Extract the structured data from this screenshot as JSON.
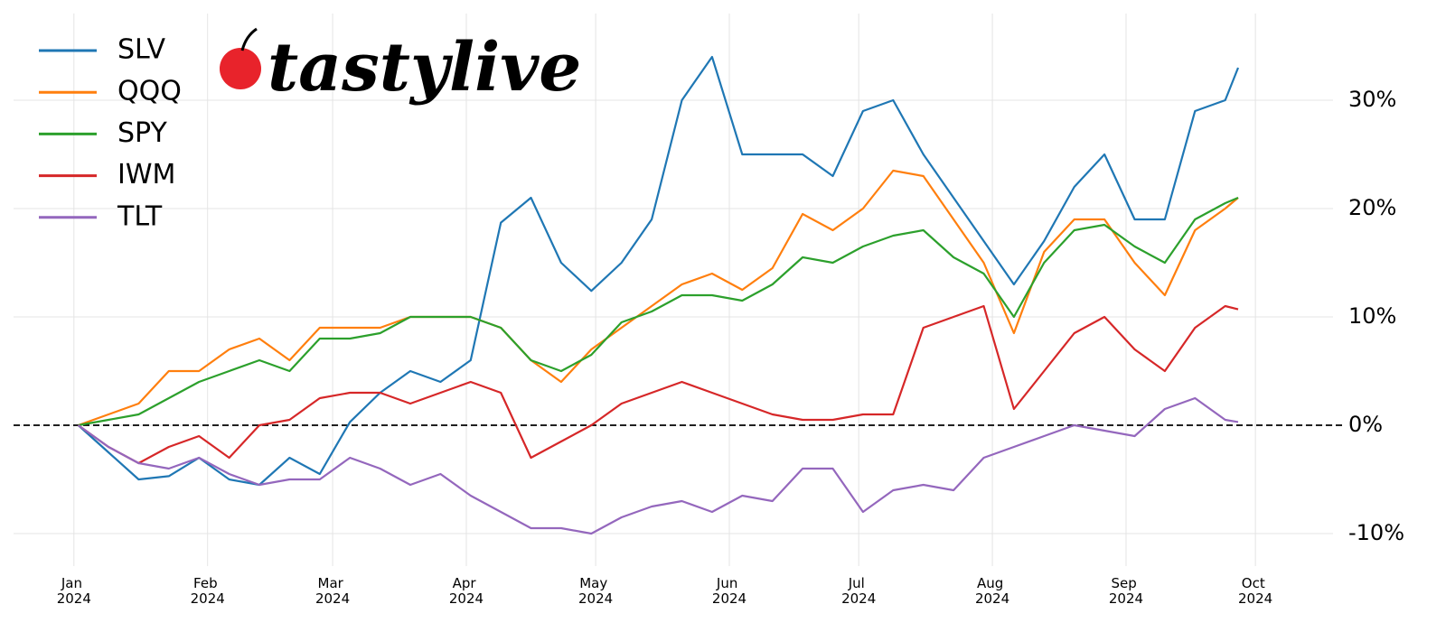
{
  "chart_data": {
    "type": "line",
    "logo": "tastylive",
    "x": [
      1,
      8,
      15,
      22,
      29,
      36,
      43,
      50,
      57,
      64,
      71,
      78,
      85,
      92,
      99,
      106,
      113,
      120,
      127,
      134,
      141,
      148,
      155,
      162,
      169,
      176,
      183,
      190,
      197,
      204,
      211,
      218,
      225,
      232,
      239,
      246,
      253,
      260,
      267,
      270
    ],
    "xlim": [
      -14,
      292
    ],
    "xticks": [
      {
        "value": 0,
        "label": "Jan 2024"
      },
      {
        "value": 31,
        "label": "Feb 2024"
      },
      {
        "value": 60,
        "label": "Mar 2024"
      },
      {
        "value": 91,
        "label": "Apr 2024"
      },
      {
        "value": 121,
        "label": "May 2024"
      },
      {
        "value": 152,
        "label": "Jun 2024"
      },
      {
        "value": 182,
        "label": "Jul 2024"
      },
      {
        "value": 213,
        "label": "Aug 2024"
      },
      {
        "value": 244,
        "label": "Sep 2024"
      },
      {
        "value": 274,
        "label": "Oct 2024"
      }
    ],
    "ylim": [
      -13,
      38
    ],
    "yticks": [
      {
        "value": -10,
        "label": "-10%"
      },
      {
        "value": 0,
        "label": "0%"
      },
      {
        "value": 10,
        "label": "10%"
      },
      {
        "value": 20,
        "label": "20%"
      },
      {
        "value": 30,
        "label": "30%"
      }
    ],
    "grid": true,
    "series": [
      {
        "name": "SLV",
        "color": "#1f77b4",
        "values": [
          0,
          -2.5,
          -5,
          -4.7,
          -3,
          -5,
          -5.5,
          -3,
          -4.5,
          0.3,
          3,
          5,
          4,
          6,
          18.7,
          21,
          15,
          12.4,
          15,
          19,
          30,
          34,
          25,
          25,
          25,
          23,
          29,
          30,
          25,
          21,
          17,
          13,
          17,
          22,
          25,
          19,
          19,
          29,
          30,
          33
        ]
      },
      {
        "name": "QQQ",
        "color": "#ff7f0e",
        "values": [
          0,
          1,
          2,
          5,
          5,
          7,
          8,
          6,
          9,
          9,
          9,
          10,
          10,
          10,
          9,
          6,
          4,
          7,
          9,
          11,
          13,
          14,
          12.5,
          14.5,
          19.5,
          18,
          20,
          23.5,
          23,
          19,
          15,
          8.5,
          16,
          19,
          19,
          15,
          12,
          18,
          20,
          21
        ]
      },
      {
        "name": "SPY",
        "color": "#2ca02c",
        "values": [
          0,
          0.5,
          1,
          2.5,
          4,
          5,
          6,
          5,
          8,
          8,
          8.5,
          10,
          10,
          10,
          9,
          6,
          5,
          6.5,
          9.5,
          10.5,
          12,
          12,
          11.5,
          13,
          15.5,
          15,
          16.5,
          17.5,
          18,
          15.5,
          14,
          10,
          15,
          18,
          18.5,
          16.5,
          15,
          19,
          20.5,
          21
        ]
      },
      {
        "name": "IWM",
        "color": "#d62728",
        "values": [
          0,
          -2,
          -3.5,
          -2,
          -1,
          -3,
          0,
          0.5,
          2.5,
          3,
          3,
          2,
          3,
          4,
          3,
          -3,
          -1.5,
          0,
          2,
          3,
          4,
          3,
          2,
          1,
          0.5,
          0.5,
          1,
          1,
          9,
          10,
          11,
          1.5,
          5,
          8.5,
          10,
          7,
          5,
          9,
          11,
          10.7
        ]
      },
      {
        "name": "TLT",
        "color": "#9467bd",
        "values": [
          0,
          -2,
          -3.5,
          -4,
          -3,
          -4.5,
          -5.5,
          -5,
          -5,
          -3,
          -4,
          -5.5,
          -4.5,
          -6.5,
          -8,
          -9.5,
          -9.5,
          -10,
          -8.5,
          -7.5,
          -7,
          -8,
          -6.5,
          -7,
          -4,
          -4,
          -8,
          -6,
          -5.5,
          -6,
          -3,
          -2,
          -1,
          0,
          -0.5,
          -1,
          1.5,
          2.5,
          0.5,
          0.3
        ]
      }
    ]
  }
}
